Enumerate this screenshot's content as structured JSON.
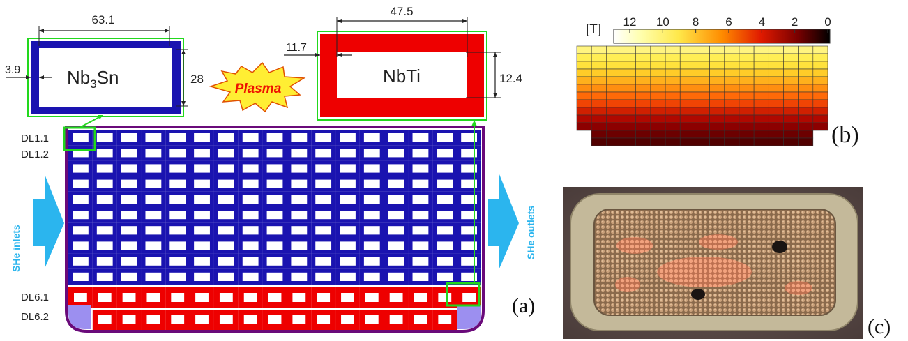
{
  "panel_a": {
    "panel_label": "(a)",
    "nb3sn": {
      "label_main": "Nb",
      "label_sub": "3",
      "label_end": "Sn",
      "width_dim": "63.1",
      "height_dim": "28",
      "wall_dim": "3.9"
    },
    "nbti": {
      "label": "NbTi",
      "width_dim": "47.5",
      "height_dim": "12.4",
      "wall_dim": "11.7"
    },
    "plasma": "Plasma",
    "layers": {
      "dl11": "DL1.1",
      "dl12": "DL1.2",
      "dl61": "DL6.1",
      "dl62": "DL6.2"
    },
    "inlets": "SHe inlets",
    "outlets": "SHe outlets",
    "grid": {
      "columns": 17,
      "nb3sn_rows": 10,
      "nbti_rows": 2
    },
    "colors": {
      "nb3sn": "#1a13b0",
      "nbti": "#ee0000",
      "highlight": "#22d81d",
      "arrow": "#2bb5ee",
      "border": "#6a0a7a"
    }
  },
  "panel_b": {
    "panel_label": "(b)",
    "unit": "[T]",
    "colorbar_ticks": [
      "12",
      "10",
      "8",
      "6",
      "4",
      "2",
      "0"
    ]
  },
  "panel_c": {
    "panel_label": "(c)"
  }
}
